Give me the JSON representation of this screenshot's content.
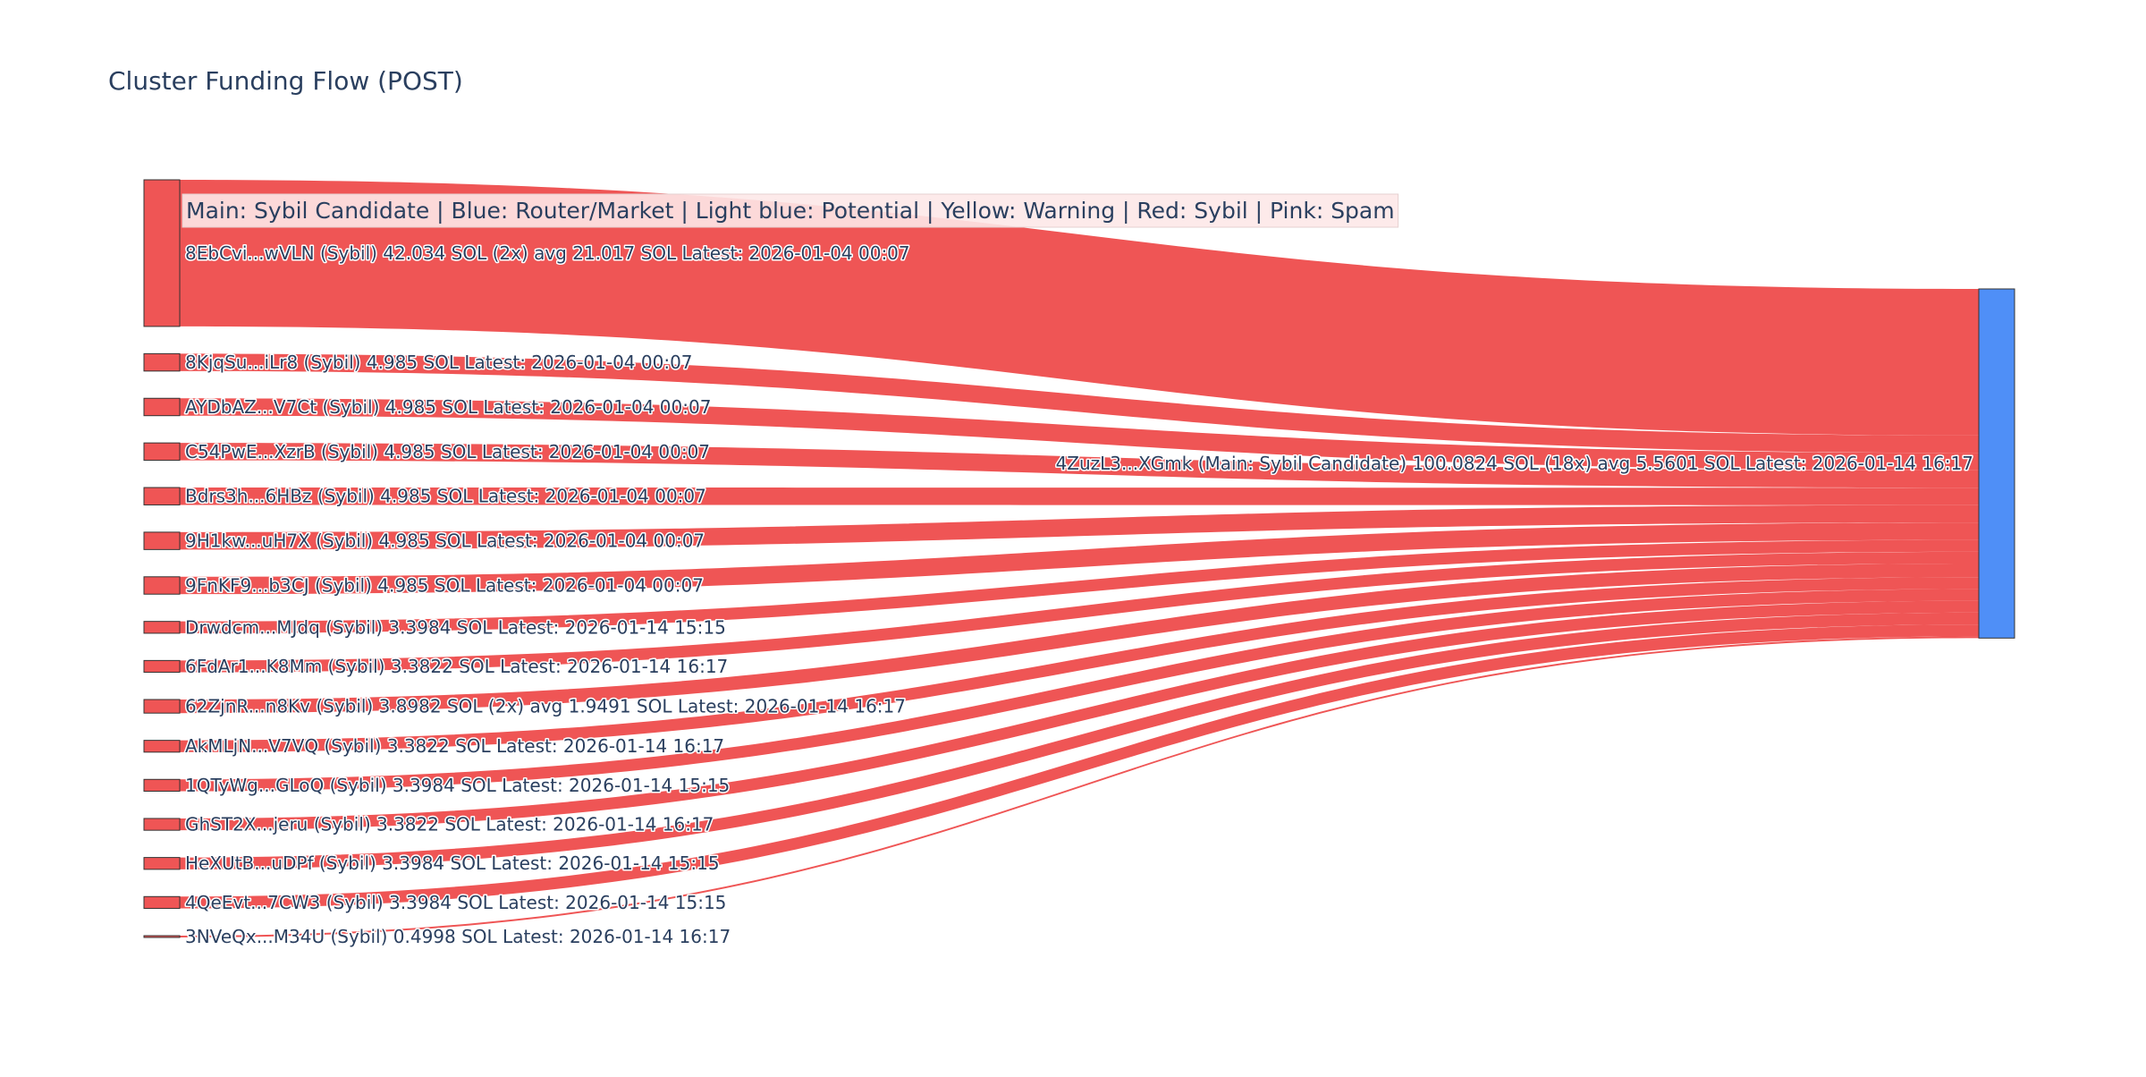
{
  "chart_data": {
    "type": "sankey",
    "title": "Cluster Funding Flow (POST)",
    "legend_note": "Main: Sybil Candidate  |  Blue: Router/Market | Light blue: Potential | Yellow: Warning | Red: Sybil | Pink: Spam",
    "colors": {
      "sybil": "#ef5555",
      "main": "#4f8ff7",
      "node_border": "#333333",
      "legend_bg": "#fde8e8"
    },
    "target": {
      "label": "4ZuzL3...XGmk (Main: Sybil Candidate) 100.0824 SOL (18x) avg 5.5601 SOL Latest: 2026-01-14 16:17",
      "value": 100.0824,
      "category": "main"
    },
    "sources": [
      {
        "label": "8EbCvi...wVLN (Sybil) 42.034 SOL (2x) avg 21.017 SOL Latest: 2026-01-04 00:07",
        "value": 42.034,
        "category": "sybil"
      },
      {
        "label": "8KjqSu...iLr8 (Sybil) 4.985 SOL Latest: 2026-01-04 00:07",
        "value": 4.985,
        "category": "sybil"
      },
      {
        "label": "AYDbAZ...V7Ct (Sybil) 4.985 SOL Latest: 2026-01-04 00:07",
        "value": 4.985,
        "category": "sybil"
      },
      {
        "label": "C54PwE...XzrB (Sybil) 4.985 SOL Latest: 2026-01-04 00:07",
        "value": 4.985,
        "category": "sybil"
      },
      {
        "label": "Bdrs3h...6HBz (Sybil) 4.985 SOL Latest: 2026-01-04 00:07",
        "value": 4.985,
        "category": "sybil"
      },
      {
        "label": "9H1kw...uH7X (Sybil) 4.985 SOL Latest: 2026-01-04 00:07",
        "value": 4.985,
        "category": "sybil"
      },
      {
        "label": "9FnKF9...b3CJ (Sybil) 4.985 SOL Latest: 2026-01-04 00:07",
        "value": 4.985,
        "category": "sybil"
      },
      {
        "label": "Drwdcm...MJdq (Sybil) 3.3984 SOL Latest: 2026-01-14 15:15",
        "value": 3.3984,
        "category": "sybil"
      },
      {
        "label": "6FdAr1...K8Mm (Sybil) 3.3822 SOL Latest: 2026-01-14 16:17",
        "value": 3.3822,
        "category": "sybil"
      },
      {
        "label": "62ZjnR...n8Kv (Sybil) 3.8982 SOL (2x) avg 1.9491 SOL Latest: 2026-01-14 16:17",
        "value": 3.8982,
        "category": "sybil"
      },
      {
        "label": "AkMLjN...V7VQ (Sybil) 3.3822 SOL Latest: 2026-01-14 16:17",
        "value": 3.3822,
        "category": "sybil"
      },
      {
        "label": "1QTyWg...GLoQ (Sybil) 3.3984 SOL Latest: 2026-01-14 15:15",
        "value": 3.3984,
        "category": "sybil"
      },
      {
        "label": "GhST2X...jeru (Sybil) 3.3822 SOL Latest: 2026-01-14 16:17",
        "value": 3.3822,
        "category": "sybil"
      },
      {
        "label": "HeXUtB...uDPf (Sybil) 3.3984 SOL Latest: 2026-01-14 15:15",
        "value": 3.3984,
        "category": "sybil"
      },
      {
        "label": "4QeEvt...7CW3 (Sybil) 3.3984 SOL Latest: 2026-01-14 15:15",
        "value": 3.3984,
        "category": "sybil"
      },
      {
        "label": "3NVeQx...M34U (Sybil) 0.4998 SOL Latest: 2026-01-14 16:17",
        "value": 0.4998,
        "category": "sybil"
      }
    ]
  }
}
